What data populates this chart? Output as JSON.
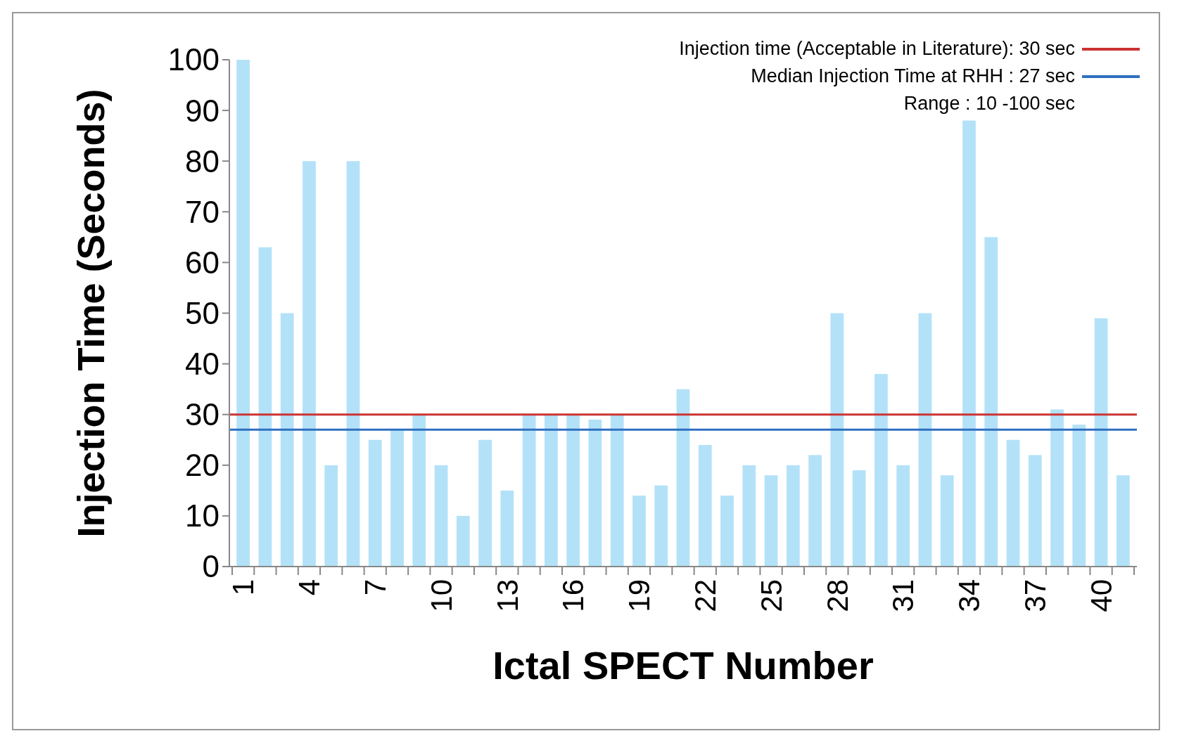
{
  "chart_data": {
    "type": "bar",
    "xlabel": "Ictal SPECT Number",
    "ylabel": "Injection Time (Seconds)",
    "categories": [
      "1",
      null,
      null,
      "4",
      null,
      null,
      "7",
      null,
      null,
      "10",
      null,
      null,
      "13",
      null,
      null,
      "16",
      null,
      null,
      "19",
      null,
      null,
      "22",
      null,
      null,
      "25",
      null,
      null,
      "28",
      null,
      null,
      "31",
      null,
      null,
      "34",
      null,
      null,
      "37",
      null,
      null,
      "40",
      null
    ],
    "values": [
      100,
      63,
      50,
      80,
      20,
      80,
      25,
      27,
      30,
      20,
      10,
      25,
      15,
      30,
      30,
      30,
      29,
      30,
      14,
      16,
      35,
      24,
      14,
      20,
      18,
      20,
      22,
      50,
      19,
      38,
      20,
      50,
      18,
      88,
      65,
      25,
      22,
      31,
      28,
      49,
      18
    ],
    "color": "#b3e2f8",
    "ylim": [
      0,
      100
    ],
    "yticks": [
      0,
      10,
      20,
      30,
      40,
      50,
      60,
      70,
      80,
      90,
      100
    ],
    "grid": false,
    "ref_lines": [
      {
        "axis": "y",
        "value": 30,
        "label": "Injection time (Acceptable in Literature): 30 sec",
        "color": "#cc3333"
      },
      {
        "axis": "y",
        "value": 27,
        "label": "Median Injection Time at RHH : 27 sec",
        "color": "#2f6fc0"
      }
    ],
    "annotations": [
      "Range : 10 -100 sec"
    ],
    "legend": "top right"
  }
}
